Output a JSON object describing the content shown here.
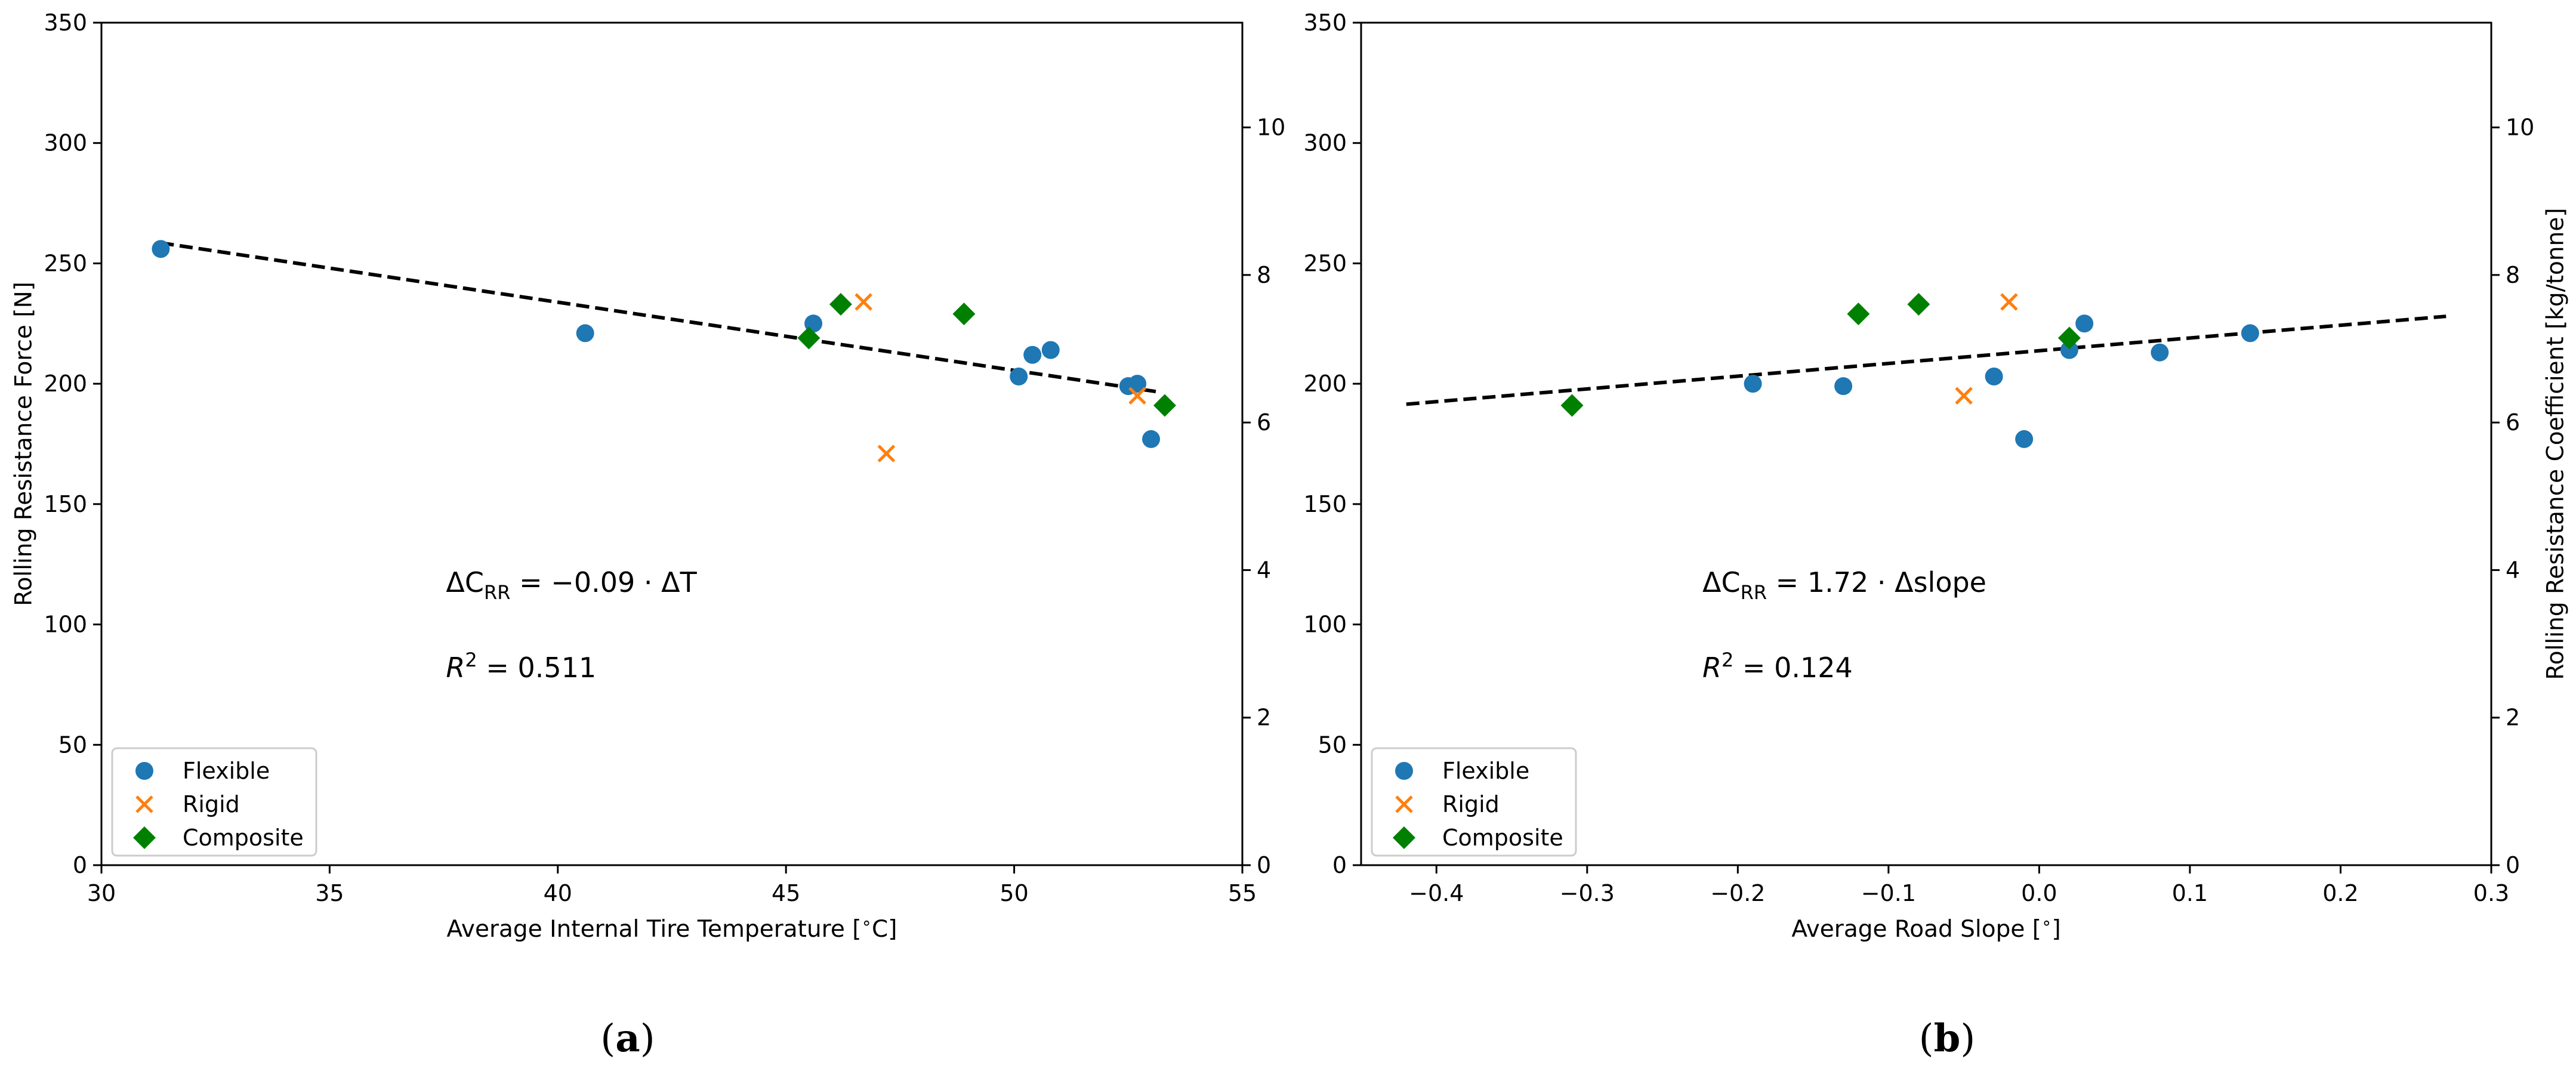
{
  "colors": {
    "flexible": "#1f77b4",
    "rigid": "#ff7f0e",
    "composite": "#008000",
    "fit_line": "#000000"
  },
  "chart_data": [
    {
      "type": "scatter",
      "panel": "a",
      "caption": "(a)",
      "caption_letter": "a",
      "xlabel": "Average Internal Tire Temperature [$^\\circ$C]",
      "xlabel_text": "Average Internal Tire Temperature [",
      "xlabel_unit": "C]",
      "ylabel_left": "Rolling Resistance Force [N]",
      "ylabel_right": "",
      "xlim": [
        30,
        55
      ],
      "ylim_left": [
        0,
        350
      ],
      "ylim_right": [
        0,
        11.42
      ],
      "xticks": [
        30,
        35,
        40,
        45,
        50,
        55
      ],
      "xtick_labels": [
        "30",
        "35",
        "40",
        "45",
        "50",
        "55"
      ],
      "yticks_left": [
        0,
        50,
        100,
        150,
        200,
        250,
        300,
        350
      ],
      "ytick_labels_left": [
        "0",
        "50",
        "100",
        "150",
        "200",
        "250",
        "300",
        "350"
      ],
      "yticks_right": [
        0,
        2,
        4,
        6,
        8,
        10
      ],
      "ytick_labels_right": [
        "0",
        "2",
        "4",
        "6",
        "8",
        "10"
      ],
      "series": [
        {
          "name": "Flexible",
          "marker": "circle",
          "points": [
            [
              31.3,
              256
            ],
            [
              40.6,
              221
            ],
            [
              45.6,
              225
            ],
            [
              50.1,
              203
            ],
            [
              50.4,
              212
            ],
            [
              50.8,
              214
            ],
            [
              52.5,
              199
            ],
            [
              52.7,
              200
            ],
            [
              53.0,
              177
            ]
          ]
        },
        {
          "name": "Rigid",
          "marker": "x",
          "points": [
            [
              46.7,
              234
            ],
            [
              47.2,
              171
            ],
            [
              52.7,
              195
            ]
          ]
        },
        {
          "name": "Composite",
          "marker": "diamond",
          "points": [
            [
              45.5,
              219
            ],
            [
              46.2,
              233
            ],
            [
              48.9,
              229
            ],
            [
              53.3,
              191
            ]
          ]
        }
      ],
      "fit_line": {
        "x": [
          31.3,
          53.2
        ],
        "y": [
          258.5,
          196.5
        ],
        "style": "dashed"
      },
      "annotation_equation": {
        "prefix": "ΔC",
        "sub": "RR",
        "rest": " = −0.09 · ΔT"
      },
      "annotation_r2": {
        "prefix": "R",
        "sup": "2",
        "rest": " = 0.511"
      },
      "legend": {
        "location": "lower-left",
        "entries": [
          "Flexible",
          "Rigid",
          "Composite"
        ]
      }
    },
    {
      "type": "scatter",
      "panel": "b",
      "caption": "(b)",
      "caption_letter": "b",
      "xlabel": "Average Road Slope [$^\\circ$]",
      "xlabel_text": "Average Road Slope [",
      "xlabel_unit": "]",
      "ylabel_left": "",
      "ylabel_right": "Rolling Resistance Coefficient [kg/tonne]",
      "xlim": [
        -0.45,
        0.3
      ],
      "ylim_left": [
        0,
        350
      ],
      "ylim_right": [
        0,
        11.42
      ],
      "xticks": [
        -0.4,
        -0.3,
        -0.2,
        -0.1,
        0.0,
        0.1,
        0.2,
        0.3
      ],
      "xtick_labels": [
        "−0.4",
        "−0.3",
        "−0.2",
        "−0.1",
        "0.0",
        "0.1",
        "0.2",
        "0.3"
      ],
      "yticks_left": [
        0,
        50,
        100,
        150,
        200,
        250,
        300,
        350
      ],
      "ytick_labels_left": [
        "0",
        "50",
        "100",
        "150",
        "200",
        "250",
        "300",
        "350"
      ],
      "yticks_right": [
        0,
        2,
        4,
        6,
        8,
        10
      ],
      "ytick_labels_right": [
        "0",
        "2",
        "4",
        "6",
        "8",
        "10"
      ],
      "series": [
        {
          "name": "Flexible",
          "marker": "circle",
          "points": [
            [
              -0.19,
              200
            ],
            [
              -0.13,
              199
            ],
            [
              -0.03,
              203
            ],
            [
              -0.01,
              177
            ],
            [
              0.02,
              214
            ],
            [
              0.03,
              225
            ],
            [
              0.08,
              213
            ],
            [
              0.14,
              221
            ]
          ]
        },
        {
          "name": "Rigid",
          "marker": "x",
          "points": [
            [
              -0.05,
              195
            ],
            [
              -0.02,
              234
            ]
          ]
        },
        {
          "name": "Composite",
          "marker": "diamond",
          "points": [
            [
              -0.31,
              191
            ],
            [
              -0.12,
              229
            ],
            [
              -0.08,
              233
            ],
            [
              0.02,
              219
            ]
          ]
        }
      ],
      "fit_line": {
        "x": [
          -0.42,
          0.27
        ],
        "y": [
          191.5,
          228.0
        ],
        "style": "dashed"
      },
      "annotation_equation": {
        "prefix": "ΔC",
        "sub": "RR",
        "rest": " = 1.72 · Δslope"
      },
      "annotation_r2": {
        "prefix": "R",
        "sup": "2",
        "rest": " = 0.124"
      },
      "legend": {
        "location": "lower-left",
        "entries": [
          "Flexible",
          "Rigid",
          "Composite"
        ]
      }
    }
  ]
}
